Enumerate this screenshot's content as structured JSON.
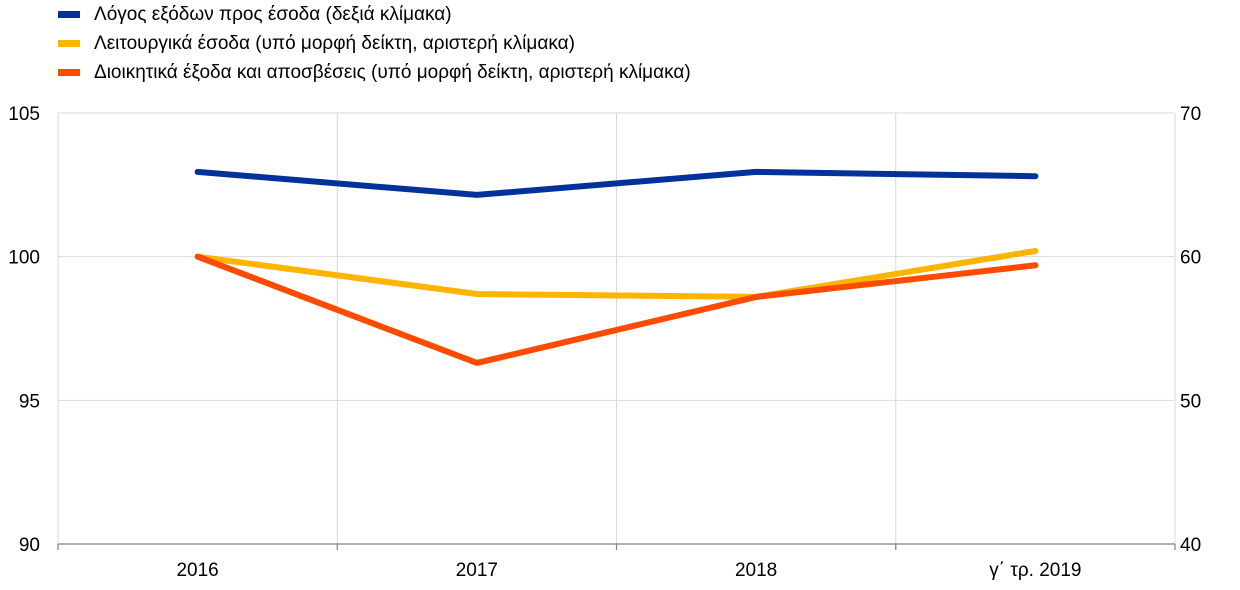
{
  "chart_data": {
    "type": "line",
    "categories": [
      "2016",
      "2017",
      "2018",
      "γ΄ τρ. 2019"
    ],
    "y_left": {
      "min": 90,
      "max": 105,
      "ticks": [
        "90",
        "95",
        "100",
        "105"
      ]
    },
    "y_right": {
      "min": 40,
      "max": 70,
      "ticks": [
        "40",
        "50",
        "60",
        "70"
      ]
    },
    "grid": true,
    "legend_position": "top-left",
    "series": [
      {
        "name": "Λόγος εξόδων προς έσοδα (δεξιά κλίμακα)",
        "axis": "right",
        "color": "#003299",
        "values": [
          65.9,
          64.3,
          65.9,
          65.6
        ]
      },
      {
        "name": "Λειτουργικά έσοδα (υπό μορφή δείκτη, αριστερή κλίμακα)",
        "axis": "left",
        "color": "#ffb400",
        "values": [
          100.0,
          98.7,
          98.6,
          100.2
        ]
      },
      {
        "name": "Διοικητικά έξοδα και αποσβέσεις (υπό μορφή δείκτη, αριστερή κλίμακα)",
        "axis": "left",
        "color": "#ff4b00",
        "values": [
          100.0,
          96.3,
          98.6,
          99.7
        ]
      }
    ]
  }
}
